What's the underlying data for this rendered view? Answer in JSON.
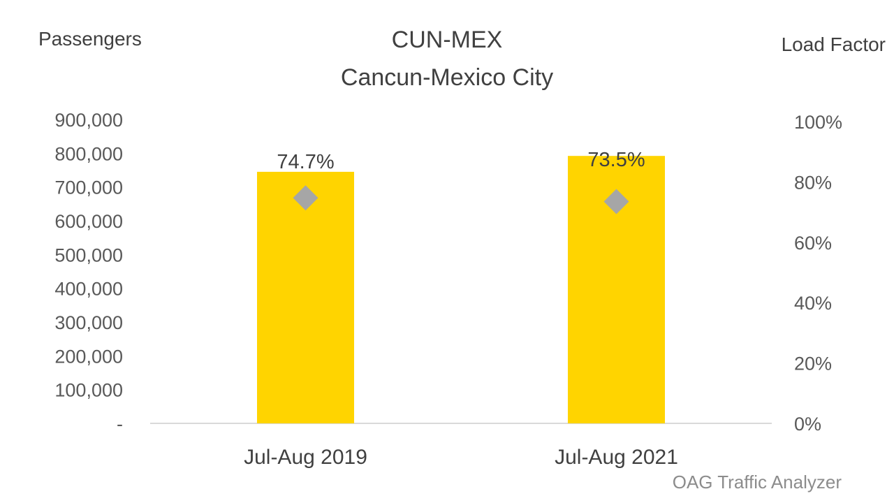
{
  "chart_data": {
    "type": "bar",
    "title": "CUN-MEX",
    "subtitle": "Cancun-Mexico City",
    "ylabel_left": "Passengers",
    "ylabel_right": "Load Factor",
    "source": "OAG Traffic Analyzer",
    "categories": [
      "Jul-Aug 2019",
      "Jul-Aug 2021"
    ],
    "series": [
      {
        "kind": "bar",
        "axis": "left",
        "values": [
          745000,
          792000
        ],
        "color": "#FFD400"
      },
      {
        "kind": "marker",
        "marker": "diamond",
        "axis": "right",
        "values": [
          74.7,
          73.5
        ],
        "data_labels": [
          "74.7%",
          "73.5%"
        ],
        "color": "#A6A6A6"
      }
    ],
    "ylim_left": [
      0,
      900000
    ],
    "ylim_right": [
      0,
      100
    ],
    "yticks_left": [
      "-",
      "100,000",
      "200,000",
      "300,000",
      "400,000",
      "500,000",
      "600,000",
      "700,000",
      "800,000",
      "900,000"
    ],
    "yticks_right": [
      "0%",
      "20%",
      "40%",
      "60%",
      "80%",
      "100%"
    ],
    "grid": false,
    "legend": "none"
  }
}
